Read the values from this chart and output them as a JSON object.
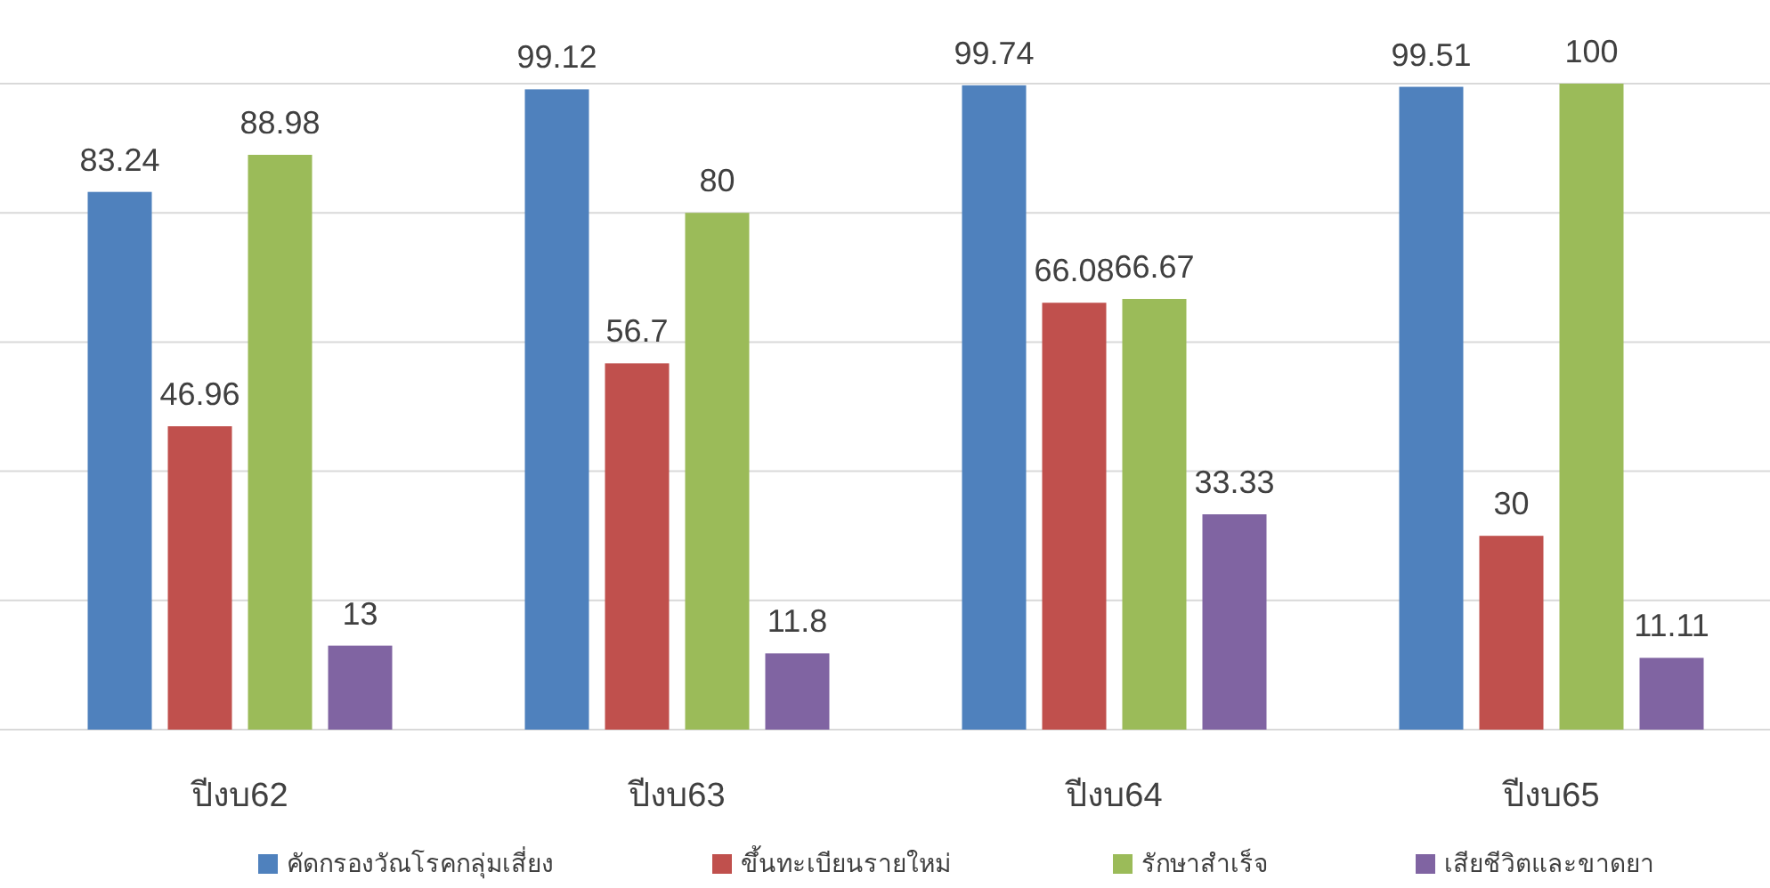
{
  "chart_data": {
    "type": "bar",
    "categories": [
      "ปีงบ62",
      "ปีงบ63",
      "ปีงบ64",
      "ปีงบ65"
    ],
    "series": [
      {
        "name": "คัดกรองวัณโรคกลุ่มเสี่ยง",
        "color": "#4f81bd",
        "values": [
          83.24,
          99.12,
          99.74,
          99.51
        ]
      },
      {
        "name": "ขึ้นทะเบียนรายใหม่",
        "color": "#c0504d",
        "values": [
          46.96,
          56.7,
          66.08,
          30
        ]
      },
      {
        "name": "รักษาสำเร็จ",
        "color": "#9bbb59",
        "values": [
          88.98,
          80,
          66.67,
          100
        ]
      },
      {
        "name": "เสียชีวิตและขาดยา",
        "color": "#8064a2",
        "values": [
          13,
          11.8,
          33.33,
          11.11
        ]
      }
    ],
    "ylim": [
      0,
      100
    ],
    "yticks": [
      {
        "value": 0,
        "label": null
      },
      {
        "value": 20,
        "label": null
      },
      {
        "value": 40,
        "label": null
      },
      {
        "value": 60,
        "label": null
      },
      {
        "value": 80,
        "label": null
      },
      {
        "value": 100,
        "label": null
      }
    ],
    "tick_labels": "x",
    "grid": "y",
    "data_labels": true,
    "legend": "bottom"
  }
}
